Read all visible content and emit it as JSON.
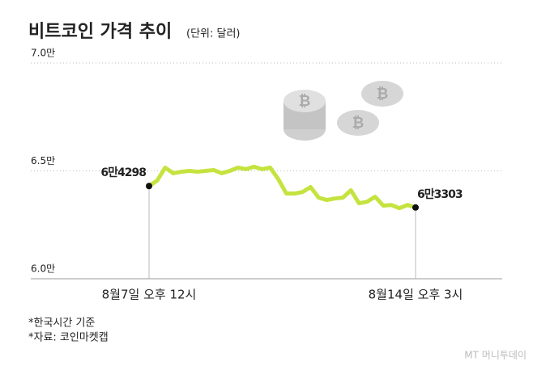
{
  "chart_data": {
    "type": "line",
    "title": "비트코인 가격 추이",
    "subtitle": "(단위: 달러)",
    "categories": [
      "8월7일 오후 12시",
      null,
      null,
      null,
      null,
      null,
      null,
      null,
      null,
      null,
      null,
      null,
      null,
      null,
      null,
      null,
      null,
      null,
      null,
      null,
      null,
      null,
      null,
      null,
      null,
      null,
      null,
      null,
      null,
      null,
      null,
      null,
      null,
      "8월14일 오후 3시"
    ],
    "values": [
      64298,
      64550,
      65150,
      64890,
      64960,
      65000,
      64960,
      65000,
      65040,
      64890,
      65000,
      65150,
      65080,
      65190,
      65080,
      65150,
      64620,
      63950,
      63950,
      64020,
      64250,
      63760,
      63650,
      63720,
      63760,
      64100,
      63500,
      63570,
      63800,
      63390,
      63420,
      63270,
      63420,
      63303
    ],
    "value_labels": [
      "6만4298",
      null,
      null,
      null,
      null,
      null,
      null,
      null,
      null,
      null,
      null,
      null,
      null,
      null,
      null,
      null,
      null,
      null,
      null,
      null,
      null,
      null,
      null,
      null,
      null,
      null,
      null,
      null,
      null,
      null,
      null,
      null,
      null,
      "6만3303"
    ],
    "color": "#c5e33f",
    "ylim": [
      60000,
      70000
    ],
    "yticks": [
      {
        "value": 60000,
        "label": "6.0만"
      },
      {
        "value": 65000,
        "label": "6.5만"
      },
      {
        "value": 70000,
        "label": "7.0만"
      }
    ],
    "grid": true,
    "annotations": [
      "*한국시간 기준",
      "*자료: 코인마켓캡"
    ],
    "source_logo": "MT 머니투데이"
  }
}
